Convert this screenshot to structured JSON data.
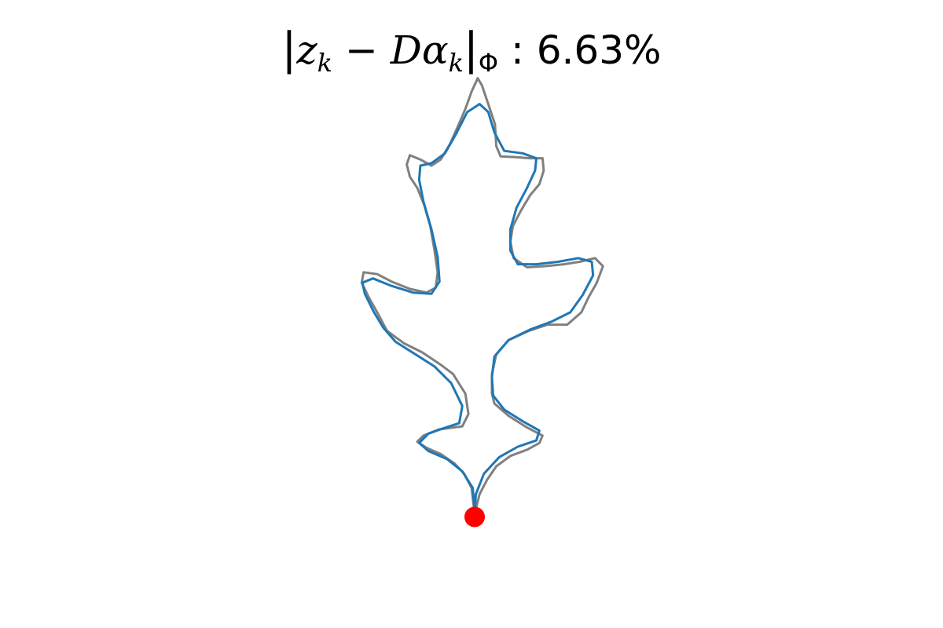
{
  "chart_data": {
    "type": "line",
    "title": "|z_k − Dα_k|_Φ : 6.63%",
    "title_parts": {
      "open_bar": "|",
      "z": "z",
      "z_sub": "k",
      "minus": " − ",
      "d": "D",
      "alpha": "α",
      "alpha_sub": "k",
      "close_bar": "|",
      "norm_sub": "Φ",
      "separator": " : ",
      "value": "6.63%"
    },
    "axes_visible": false,
    "grid": false,
    "legend": "none",
    "xlim": [
      -2.5,
      2.5
    ],
    "ylim": [
      -4.0,
      4.0
    ],
    "series": [
      {
        "role": "original",
        "color": "#808080",
        "closed": true,
        "points": [
          [
            0.0,
            -3.37
          ],
          [
            -0.05,
            -2.95
          ],
          [
            -0.17,
            -2.72
          ],
          [
            -0.33,
            -2.55
          ],
          [
            -0.55,
            -2.4
          ],
          [
            -0.78,
            -2.3
          ],
          [
            -0.93,
            -2.2
          ],
          [
            -0.83,
            -2.1
          ],
          [
            -0.58,
            -2.0
          ],
          [
            -0.2,
            -1.95
          ],
          [
            -0.1,
            -1.75
          ],
          [
            -0.15,
            -1.42
          ],
          [
            -0.35,
            -1.1
          ],
          [
            -0.55,
            -0.95
          ],
          [
            -0.85,
            -0.75
          ],
          [
            -1.15,
            -0.6
          ],
          [
            -1.42,
            -0.4
          ],
          [
            -1.57,
            -0.12
          ],
          [
            -1.72,
            0.15
          ],
          [
            -1.83,
            0.38
          ],
          [
            -1.8,
            0.55
          ],
          [
            -1.58,
            0.52
          ],
          [
            -1.35,
            0.4
          ],
          [
            -1.05,
            0.28
          ],
          [
            -0.78,
            0.22
          ],
          [
            -0.63,
            0.3
          ],
          [
            -0.6,
            0.55
          ],
          [
            -0.65,
            0.9
          ],
          [
            -0.72,
            1.3
          ],
          [
            -0.82,
            1.65
          ],
          [
            -0.93,
            1.92
          ],
          [
            -1.05,
            2.1
          ],
          [
            -1.1,
            2.3
          ],
          [
            -1.05,
            2.45
          ],
          [
            -0.88,
            2.38
          ],
          [
            -0.7,
            2.28
          ],
          [
            -0.55,
            2.38
          ],
          [
            -0.4,
            2.63
          ],
          [
            -0.27,
            2.92
          ],
          [
            -0.15,
            3.2
          ],
          [
            -0.05,
            3.48
          ],
          [
            0.05,
            3.7
          ],
          [
            0.12,
            3.58
          ],
          [
            0.23,
            3.25
          ],
          [
            0.33,
            2.95
          ],
          [
            0.35,
            2.6
          ],
          [
            0.42,
            2.43
          ],
          [
            0.63,
            2.42
          ],
          [
            0.9,
            2.4
          ],
          [
            1.1,
            2.4
          ],
          [
            1.12,
            2.2
          ],
          [
            1.05,
            1.98
          ],
          [
            0.9,
            1.8
          ],
          [
            0.75,
            1.55
          ],
          [
            0.62,
            1.3
          ],
          [
            0.58,
            1.05
          ],
          [
            0.63,
            0.78
          ],
          [
            0.85,
            0.63
          ],
          [
            1.15,
            0.65
          ],
          [
            1.45,
            0.68
          ],
          [
            1.7,
            0.72
          ],
          [
            1.95,
            0.78
          ],
          [
            2.08,
            0.65
          ],
          [
            1.98,
            0.38
          ],
          [
            1.85,
            0.15
          ],
          [
            1.73,
            -0.1
          ],
          [
            1.5,
            -0.3
          ],
          [
            1.18,
            -0.3
          ],
          [
            0.88,
            -0.4
          ],
          [
            0.55,
            -0.55
          ],
          [
            0.35,
            -0.78
          ],
          [
            0.28,
            -1.1
          ],
          [
            0.28,
            -1.42
          ],
          [
            0.32,
            -1.58
          ],
          [
            0.55,
            -1.78
          ],
          [
            0.85,
            -1.97
          ],
          [
            1.1,
            -2.1
          ],
          [
            1.05,
            -2.22
          ],
          [
            0.85,
            -2.33
          ],
          [
            0.58,
            -2.43
          ],
          [
            0.35,
            -2.6
          ],
          [
            0.2,
            -2.82
          ],
          [
            0.08,
            -3.05
          ],
          [
            0.0,
            -3.37
          ]
        ]
      },
      {
        "role": "reconstruction",
        "color": "#1f77b4",
        "closed": true,
        "points": [
          [
            0.0,
            -3.33
          ],
          [
            -0.03,
            -2.95
          ],
          [
            -0.2,
            -2.68
          ],
          [
            -0.45,
            -2.48
          ],
          [
            -0.75,
            -2.35
          ],
          [
            -0.9,
            -2.22
          ],
          [
            -0.75,
            -2.07
          ],
          [
            -0.5,
            -1.98
          ],
          [
            -0.25,
            -1.9
          ],
          [
            -0.2,
            -1.62
          ],
          [
            -0.38,
            -1.25
          ],
          [
            -0.65,
            -0.98
          ],
          [
            -0.98,
            -0.77
          ],
          [
            -1.28,
            -0.58
          ],
          [
            -1.48,
            -0.35
          ],
          [
            -1.63,
            -0.1
          ],
          [
            -1.78,
            0.2
          ],
          [
            -1.82,
            0.38
          ],
          [
            -1.65,
            0.45
          ],
          [
            -1.35,
            0.33
          ],
          [
            -1.0,
            0.22
          ],
          [
            -0.7,
            0.2
          ],
          [
            -0.57,
            0.4
          ],
          [
            -0.6,
            0.8
          ],
          [
            -0.7,
            1.25
          ],
          [
            -0.83,
            1.7
          ],
          [
            -0.9,
            2.05
          ],
          [
            -0.88,
            2.28
          ],
          [
            -0.7,
            2.32
          ],
          [
            -0.48,
            2.48
          ],
          [
            -0.3,
            2.8
          ],
          [
            -0.12,
            3.15
          ],
          [
            0.08,
            3.28
          ],
          [
            0.22,
            3.15
          ],
          [
            0.32,
            2.82
          ],
          [
            0.48,
            2.52
          ],
          [
            0.78,
            2.48
          ],
          [
            1.0,
            2.4
          ],
          [
            0.98,
            2.2
          ],
          [
            0.85,
            1.92
          ],
          [
            0.68,
            1.6
          ],
          [
            0.58,
            1.25
          ],
          [
            0.58,
            0.9
          ],
          [
            0.7,
            0.68
          ],
          [
            1.0,
            0.68
          ],
          [
            1.35,
            0.72
          ],
          [
            1.68,
            0.78
          ],
          [
            1.9,
            0.72
          ],
          [
            1.92,
            0.5
          ],
          [
            1.75,
            0.18
          ],
          [
            1.55,
            -0.1
          ],
          [
            1.25,
            -0.25
          ],
          [
            0.9,
            -0.38
          ],
          [
            0.55,
            -0.55
          ],
          [
            0.32,
            -0.82
          ],
          [
            0.28,
            -1.15
          ],
          [
            0.3,
            -1.45
          ],
          [
            0.48,
            -1.68
          ],
          [
            0.8,
            -1.88
          ],
          [
            1.05,
            -2.02
          ],
          [
            1.0,
            -2.18
          ],
          [
            0.7,
            -2.28
          ],
          [
            0.4,
            -2.45
          ],
          [
            0.15,
            -2.72
          ],
          [
            0.02,
            -3.05
          ],
          [
            0.0,
            -3.33
          ]
        ]
      }
    ],
    "annotations": [
      {
        "type": "marker",
        "shape": "circle",
        "color": "#ff0000",
        "x": 0.0,
        "y": -3.42
      }
    ]
  }
}
